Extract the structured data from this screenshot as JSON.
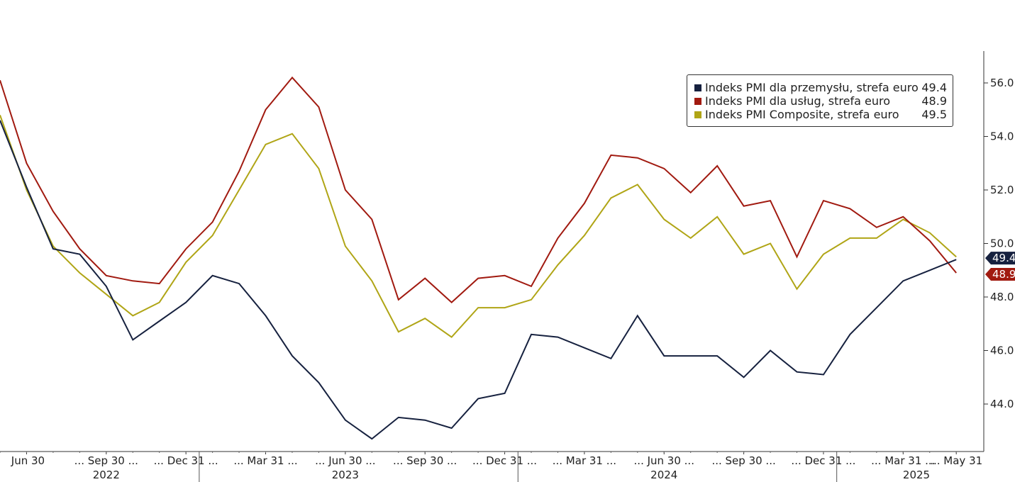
{
  "chart_data": {
    "type": "line",
    "x": [
      "2022-05-31",
      "2022-06-30",
      "2022-07-31",
      "2022-08-31",
      "2022-09-30",
      "2022-10-31",
      "2022-11-30",
      "2022-12-31",
      "2023-01-31",
      "2023-02-28",
      "2023-03-31",
      "2023-04-30",
      "2023-05-31",
      "2023-06-30",
      "2023-07-31",
      "2023-08-31",
      "2023-09-30",
      "2023-10-31",
      "2023-11-30",
      "2023-12-31",
      "2024-01-31",
      "2024-02-29",
      "2024-03-31",
      "2024-04-30",
      "2024-05-31",
      "2024-06-30",
      "2024-07-31",
      "2024-08-31",
      "2024-09-30",
      "2024-10-31",
      "2024-11-30",
      "2024-12-31",
      "2025-01-31",
      "2025-02-28",
      "2025-03-31",
      "2025-04-30",
      "2025-05-31"
    ],
    "series": [
      {
        "name": "Indeks PMI dla przemysłu, strefa euro",
        "last_label": "49.4",
        "color": "#16213f",
        "values": [
          54.6,
          52.1,
          49.8,
          49.6,
          48.4,
          46.4,
          47.1,
          47.8,
          48.8,
          48.5,
          47.3,
          45.8,
          44.8,
          43.4,
          42.7,
          43.5,
          43.4,
          43.1,
          44.2,
          44.4,
          46.6,
          46.5,
          46.1,
          45.7,
          47.3,
          45.8,
          45.8,
          45.8,
          45.0,
          46.0,
          45.2,
          45.1,
          46.6,
          47.6,
          48.6,
          49.0,
          49.4
        ]
      },
      {
        "name": "Indeks PMI dla usług, strefa euro",
        "last_label": "48.9",
        "color": "#a11a10",
        "values": [
          56.1,
          53.0,
          51.2,
          49.8,
          48.8,
          48.6,
          48.5,
          49.8,
          50.8,
          52.7,
          55.0,
          56.2,
          55.1,
          52.0,
          50.9,
          47.9,
          48.7,
          47.8,
          48.7,
          48.8,
          48.4,
          50.2,
          51.5,
          53.3,
          53.2,
          52.8,
          51.9,
          52.9,
          51.4,
          51.6,
          49.5,
          51.6,
          51.3,
          50.6,
          51.0,
          50.1,
          48.9
        ]
      },
      {
        "name": "Indeks PMI Composite, strefa euro",
        "last_label": "49.5",
        "color": "#b0a516",
        "values": [
          54.8,
          52.0,
          49.9,
          48.9,
          48.1,
          47.3,
          47.8,
          49.3,
          50.3,
          52.0,
          53.7,
          54.1,
          52.8,
          49.9,
          48.6,
          46.7,
          47.2,
          46.5,
          47.6,
          47.6,
          47.9,
          49.2,
          50.3,
          51.7,
          52.2,
          50.9,
          50.2,
          51.0,
          49.6,
          50.0,
          48.3,
          49.6,
          50.2,
          50.2,
          50.9,
          50.4,
          49.5
        ]
      }
    ],
    "y_ticks": [
      "44.0",
      "46.0",
      "48.0",
      "50.0",
      "52.0",
      "54.0",
      "56.0"
    ],
    "x_tick_labels": [
      {
        "index": 1,
        "label": "Jun 30"
      },
      {
        "index": 4,
        "label": "... Sep 30 ..."
      },
      {
        "index": 7,
        "label": "... Dec 31 ..."
      },
      {
        "index": 10,
        "label": "... Mar 31 ..."
      },
      {
        "index": 13,
        "label": "... Jun 30 ..."
      },
      {
        "index": 16,
        "label": "... Sep 30 ..."
      },
      {
        "index": 19,
        "label": "... Dec 31 ..."
      },
      {
        "index": 22,
        "label": "... Mar 31 ..."
      },
      {
        "index": 25,
        "label": "... Jun 30 ..."
      },
      {
        "index": 28,
        "label": "... Sep 30 ..."
      },
      {
        "index": 31,
        "label": "... Dec 31 ..."
      },
      {
        "index": 34,
        "label": "... Mar 31 ..."
      },
      {
        "index": 36,
        "label": "... May 31"
      }
    ],
    "years": [
      {
        "label": "2022",
        "center_index": 4
      },
      {
        "label": "2023",
        "center_index": 13
      },
      {
        "label": "2024",
        "center_index": 25
      },
      {
        "label": "2025",
        "center_index": 34.5
      }
    ],
    "year_boundaries": [
      7.5,
      19.5,
      31.5
    ],
    "ylim": [
      42.2,
      57.2
    ],
    "y_axis_position": "right",
    "legend_position": "top-right",
    "grid": false
  }
}
